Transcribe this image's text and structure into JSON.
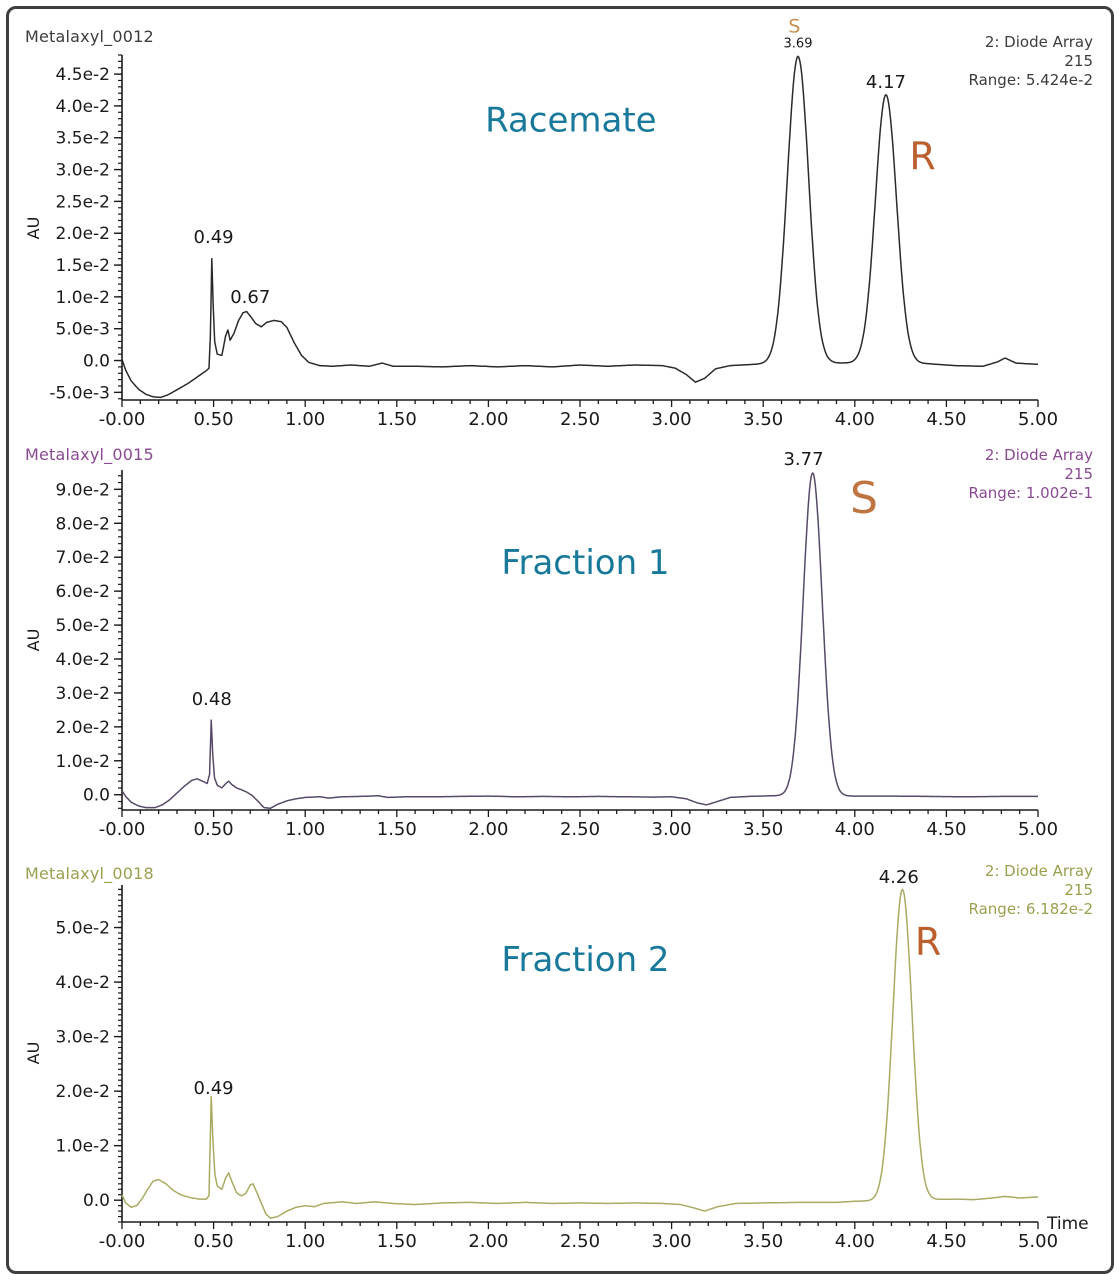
{
  "x_axis": {
    "axis_label": "Time",
    "minor_step": 0.1,
    "labels": [
      [
        0,
        "-0.00"
      ],
      [
        0.5,
        "0.50"
      ],
      [
        1,
        "1.00"
      ],
      [
        1.5,
        "1.50"
      ],
      [
        2,
        "2.00"
      ],
      [
        2.5,
        "2.50"
      ],
      [
        3,
        "3.00"
      ],
      [
        3.5,
        "3.50"
      ],
      [
        4,
        "4.00"
      ],
      [
        4.5,
        "4.50"
      ],
      [
        5,
        "5.00"
      ]
    ]
  },
  "chart_data": [
    {
      "type": "line",
      "title": "Racemate",
      "series_name": "Metalaxyl_0012",
      "name_color": "#3c3c3c",
      "info_lines": [
        "2: Diode Array",
        "215",
        "Range: 5.424e-2"
      ],
      "info_color": "#3c3c3c",
      "trace_color": "#2b2b2b",
      "y_axis_label": "AU",
      "xlim": [
        0,
        5
      ],
      "ylim": [
        -0.0062,
        0.048
      ],
      "y_ticks": {
        "minor_step": 0.001,
        "majors": [
          [
            0.045,
            "4.5e-2"
          ],
          [
            0.04,
            "4.0e-2"
          ],
          [
            0.035,
            "3.5e-2"
          ],
          [
            0.03,
            "3.0e-2"
          ],
          [
            0.025,
            "2.5e-2"
          ],
          [
            0.02,
            "2.0e-2"
          ],
          [
            0.015,
            "1.5e-2"
          ],
          [
            0.01,
            "1.0e-2"
          ],
          [
            0.005,
            "5.0e-3"
          ],
          [
            0,
            "0.0"
          ],
          [
            -0.005,
            "-5.0e-3"
          ]
        ]
      },
      "trace": {
        "baseline_points": [
          [
            0,
            0.0002
          ],
          [
            0.02,
            -0.0015
          ],
          [
            0.05,
            -0.0032
          ],
          [
            0.09,
            -0.0045
          ],
          [
            0.13,
            -0.0053
          ],
          [
            0.17,
            -0.0057
          ],
          [
            0.21,
            -0.0058
          ],
          [
            0.25,
            -0.0054
          ],
          [
            0.3,
            -0.0046
          ],
          [
            0.36,
            -0.0036
          ],
          [
            0.42,
            -0.0024
          ],
          [
            0.46,
            -0.0016
          ],
          [
            0.475,
            -0.0012
          ],
          [
            0.482,
            0.0035
          ],
          [
            0.49,
            0.016
          ],
          [
            0.498,
            0.0085
          ],
          [
            0.506,
            0.003
          ],
          [
            0.52,
            0.001
          ],
          [
            0.545,
            0.0008
          ],
          [
            0.565,
            0.0038
          ],
          [
            0.578,
            0.0048
          ],
          [
            0.59,
            0.0032
          ],
          [
            0.61,
            0.0042
          ],
          [
            0.635,
            0.0062
          ],
          [
            0.66,
            0.0075
          ],
          [
            0.68,
            0.0077
          ],
          [
            0.7,
            0.007
          ],
          [
            0.73,
            0.0058
          ],
          [
            0.76,
            0.0053
          ],
          [
            0.79,
            0.006
          ],
          [
            0.83,
            0.0063
          ],
          [
            0.87,
            0.0061
          ],
          [
            0.9,
            0.0052
          ],
          [
            0.94,
            0.0028
          ],
          [
            0.98,
            0.0008
          ],
          [
            1.02,
            -0.0003
          ],
          [
            1.08,
            -0.0008
          ],
          [
            1.15,
            -0.0009
          ],
          [
            1.25,
            -0.0007
          ],
          [
            1.35,
            -0.0009
          ],
          [
            1.42,
            -0.0004
          ],
          [
            1.48,
            -0.0009
          ],
          [
            1.6,
            -0.0009
          ],
          [
            1.75,
            -0.001
          ],
          [
            1.9,
            -0.0008
          ],
          [
            2.05,
            -0.001
          ],
          [
            2.2,
            -0.0008
          ],
          [
            2.35,
            -0.001
          ],
          [
            2.5,
            -0.0007
          ],
          [
            2.65,
            -0.0009
          ],
          [
            2.8,
            -0.0007
          ],
          [
            2.95,
            -0.0008
          ],
          [
            3.02,
            -0.0012
          ],
          [
            3.08,
            -0.0022
          ],
          [
            3.13,
            -0.0034
          ],
          [
            3.18,
            -0.0028
          ],
          [
            3.24,
            -0.0013
          ],
          [
            3.32,
            -0.0008
          ],
          [
            3.45,
            -0.0006
          ],
          [
            3.6,
            -0.0004
          ],
          [
            3.95,
            -0.0004
          ],
          [
            4.4,
            -0.0005
          ],
          [
            4.55,
            -0.0008
          ],
          [
            4.7,
            -0.0009
          ],
          [
            4.78,
            -0.0002
          ],
          [
            4.82,
            0.0004
          ],
          [
            4.88,
            -0.0004
          ],
          [
            5,
            -0.0006
          ]
        ],
        "gaussian_peaks": [
          {
            "center": 3.69,
            "height": 0.0482,
            "sigma": 0.058
          },
          {
            "center": 4.17,
            "height": 0.0422,
            "sigma": 0.058
          }
        ]
      },
      "annotations": [
        {
          "text": "Racemate",
          "x": 2.45,
          "y": 0.036,
          "size": 34,
          "color": "#19799b"
        },
        {
          "text": "0.49",
          "x": 0.5,
          "y": 0.0185,
          "size": 18,
          "color": "#1a1a1a"
        },
        {
          "text": "0.67",
          "x": 0.7,
          "y": 0.009,
          "size": 18,
          "color": "#1a1a1a"
        },
        {
          "text": "S",
          "x": 3.67,
          "y": 0.0515,
          "size": 19,
          "color": "#c9914f"
        },
        {
          "text": "3.69",
          "x": 3.69,
          "y": 0.0492,
          "size": 13,
          "color": "#1a1a1a"
        },
        {
          "text": "4.17",
          "x": 4.17,
          "y": 0.0428,
          "size": 18,
          "color": "#1a1a1a"
        },
        {
          "text": "R",
          "x": 4.37,
          "y": 0.03,
          "size": 38,
          "color": "#bc5f2f"
        }
      ]
    },
    {
      "type": "line",
      "title": "Fraction 1",
      "series_name": "Metalaxyl_0015",
      "name_color": "#8a4a93",
      "info_lines": [
        "2: Diode Array",
        "215",
        "Range: 1.002e-1"
      ],
      "info_color": "#8a4a93",
      "trace_color": "#564a68",
      "y_axis_label": "AU",
      "xlim": [
        0,
        5
      ],
      "ylim": [
        -0.0045,
        0.0957
      ],
      "y_ticks": {
        "minor_step": 0.002,
        "majors": [
          [
            0.09,
            "9.0e-2"
          ],
          [
            0.08,
            "8.0e-2"
          ],
          [
            0.07,
            "7.0e-2"
          ],
          [
            0.06,
            "6.0e-2"
          ],
          [
            0.05,
            "5.0e-2"
          ],
          [
            0.04,
            "4.0e-2"
          ],
          [
            0.03,
            "3.0e-2"
          ],
          [
            0.02,
            "2.0e-2"
          ],
          [
            0.01,
            "1.0e-2"
          ],
          [
            0,
            "0.0"
          ]
        ]
      },
      "trace": {
        "baseline_points": [
          [
            0,
            0.0012
          ],
          [
            0.02,
            -0.0005
          ],
          [
            0.05,
            -0.0022
          ],
          [
            0.09,
            -0.0033
          ],
          [
            0.13,
            -0.0038
          ],
          [
            0.18,
            -0.0038
          ],
          [
            0.22,
            -0.003
          ],
          [
            0.26,
            -0.0015
          ],
          [
            0.3,
            0.0005
          ],
          [
            0.34,
            0.0025
          ],
          [
            0.38,
            0.0042
          ],
          [
            0.41,
            0.0047
          ],
          [
            0.44,
            0.004
          ],
          [
            0.465,
            0.0033
          ],
          [
            0.478,
            0.006
          ],
          [
            0.487,
            0.022
          ],
          [
            0.495,
            0.012
          ],
          [
            0.505,
            0.005
          ],
          [
            0.52,
            0.0028
          ],
          [
            0.545,
            0.002
          ],
          [
            0.565,
            0.0032
          ],
          [
            0.582,
            0.004
          ],
          [
            0.6,
            0.003
          ],
          [
            0.625,
            0.002
          ],
          [
            0.65,
            0.0015
          ],
          [
            0.68,
            0.0008
          ],
          [
            0.71,
            -0.0002
          ],
          [
            0.74,
            -0.0018
          ],
          [
            0.775,
            -0.0038
          ],
          [
            0.81,
            -0.004
          ],
          [
            0.85,
            -0.0028
          ],
          [
            0.9,
            -0.0018
          ],
          [
            0.95,
            -0.0012
          ],
          [
            1,
            -0.0008
          ],
          [
            1.08,
            -0.0006
          ],
          [
            1.13,
            -0.001
          ],
          [
            1.2,
            -0.0006
          ],
          [
            1.3,
            -0.0005
          ],
          [
            1.4,
            -0.0003
          ],
          [
            1.45,
            -0.0008
          ],
          [
            1.55,
            -0.0006
          ],
          [
            1.7,
            -0.0006
          ],
          [
            1.85,
            -0.0005
          ],
          [
            2,
            -0.0004
          ],
          [
            2.15,
            -0.0006
          ],
          [
            2.3,
            -0.0005
          ],
          [
            2.45,
            -0.0006
          ],
          [
            2.6,
            -0.0005
          ],
          [
            2.75,
            -0.0006
          ],
          [
            2.9,
            -0.0007
          ],
          [
            3,
            -0.0006
          ],
          [
            3.08,
            -0.0012
          ],
          [
            3.14,
            -0.0024
          ],
          [
            3.19,
            -0.003
          ],
          [
            3.25,
            -0.002
          ],
          [
            3.32,
            -0.0008
          ],
          [
            3.42,
            -0.0005
          ],
          [
            3.55,
            -0.0003
          ],
          [
            4,
            -0.0004
          ],
          [
            4.2,
            -0.0004
          ],
          [
            4.4,
            -0.0005
          ],
          [
            4.6,
            -0.0006
          ],
          [
            4.8,
            -0.0005
          ],
          [
            5,
            -0.0005
          ]
        ],
        "gaussian_peaks": [
          {
            "center": 3.77,
            "height": 0.0952,
            "sigma": 0.052
          }
        ]
      },
      "annotations": [
        {
          "text": "Fraction 1",
          "x": 2.53,
          "y": 0.065,
          "size": 34,
          "color": "#19799b"
        },
        {
          "text": "0.48",
          "x": 0.49,
          "y": 0.0265,
          "size": 18,
          "color": "#1a1a1a"
        },
        {
          "text": "3.77",
          "x": 3.72,
          "y": 0.0972,
          "size": 18,
          "color": "#1a1a1a"
        },
        {
          "text": "S",
          "x": 4.05,
          "y": 0.083,
          "size": 44,
          "color": "#bf7540"
        }
      ]
    },
    {
      "type": "line",
      "title": "Fraction 2",
      "series_name": "Metalaxyl_0018",
      "name_color": "#9aa04e",
      "info_lines": [
        "2: Diode Array",
        "215",
        "Range: 6.182e-2"
      ],
      "info_color": "#9aa04e",
      "trace_color": "#a9ab63",
      "y_axis_label": "AU",
      "x_axis_label": "Time",
      "xlim": [
        0,
        5
      ],
      "ylim": [
        -0.004,
        0.0578
      ],
      "y_ticks": {
        "minor_step": 0.001,
        "majors": [
          [
            0.05,
            "5.0e-2"
          ],
          [
            0.04,
            "4.0e-2"
          ],
          [
            0.03,
            "3.0e-2"
          ],
          [
            0.02,
            "2.0e-2"
          ],
          [
            0.01,
            "1.0e-2"
          ],
          [
            0,
            "0.0"
          ]
        ]
      },
      "trace": {
        "baseline_points": [
          [
            0,
            0.001
          ],
          [
            0.02,
            -0.0005
          ],
          [
            0.05,
            -0.0013
          ],
          [
            0.08,
            -0.001
          ],
          [
            0.11,
            0.0003
          ],
          [
            0.14,
            0.002
          ],
          [
            0.17,
            0.0035
          ],
          [
            0.2,
            0.0038
          ],
          [
            0.24,
            0.003
          ],
          [
            0.28,
            0.0018
          ],
          [
            0.32,
            0.001
          ],
          [
            0.37,
            0.0005
          ],
          [
            0.42,
            0.0002
          ],
          [
            0.46,
            0.0002
          ],
          [
            0.475,
            0.0008
          ],
          [
            0.487,
            0.019
          ],
          [
            0.496,
            0.011
          ],
          [
            0.507,
            0.0048
          ],
          [
            0.52,
            0.0026
          ],
          [
            0.545,
            0.002
          ],
          [
            0.565,
            0.004
          ],
          [
            0.582,
            0.005
          ],
          [
            0.6,
            0.0034
          ],
          [
            0.625,
            0.0014
          ],
          [
            0.65,
            0.0008
          ],
          [
            0.675,
            0.0012
          ],
          [
            0.7,
            0.0028
          ],
          [
            0.715,
            0.003
          ],
          [
            0.735,
            0.0015
          ],
          [
            0.76,
            -0.0005
          ],
          [
            0.785,
            -0.0025
          ],
          [
            0.81,
            -0.0033
          ],
          [
            0.85,
            -0.003
          ],
          [
            0.9,
            -0.002
          ],
          [
            0.95,
            -0.0013
          ],
          [
            1,
            -0.001
          ],
          [
            1.05,
            -0.0012
          ],
          [
            1.1,
            -0.0006
          ],
          [
            1.2,
            -0.0003
          ],
          [
            1.28,
            -0.0006
          ],
          [
            1.38,
            -0.0003
          ],
          [
            1.48,
            -0.0006
          ],
          [
            1.6,
            -0.0008
          ],
          [
            1.75,
            -0.0005
          ],
          [
            1.9,
            -0.0004
          ],
          [
            2.05,
            -0.0006
          ],
          [
            2.2,
            -0.0004
          ],
          [
            2.35,
            -0.0006
          ],
          [
            2.5,
            -0.0005
          ],
          [
            2.65,
            -0.0006
          ],
          [
            2.8,
            -0.0005
          ],
          [
            2.95,
            -0.0006
          ],
          [
            3.05,
            -0.0008
          ],
          [
            3.12,
            -0.0014
          ],
          [
            3.18,
            -0.002
          ],
          [
            3.25,
            -0.0012
          ],
          [
            3.35,
            -0.0006
          ],
          [
            3.5,
            -0.0005
          ],
          [
            3.7,
            -0.0004
          ],
          [
            3.9,
            -0.0004
          ],
          [
            4,
            -0.0002
          ],
          [
            4.55,
            0.0002
          ],
          [
            4.65,
            0.0001
          ],
          [
            4.75,
            0.0004
          ],
          [
            4.82,
            0.0007
          ],
          [
            4.9,
            0.0004
          ],
          [
            5,
            0.0006
          ]
        ],
        "gaussian_peaks": [
          {
            "center": 4.26,
            "height": 0.057,
            "sigma": 0.052
          }
        ]
      },
      "annotations": [
        {
          "text": "Fraction 2",
          "x": 2.53,
          "y": 0.042,
          "size": 34,
          "color": "#19799b"
        },
        {
          "text": "0.49",
          "x": 0.5,
          "y": 0.0195,
          "size": 18,
          "color": "#1a1a1a"
        },
        {
          "text": "4.26",
          "x": 4.24,
          "y": 0.0582,
          "size": 18,
          "color": "#1a1a1a"
        },
        {
          "text": "R",
          "x": 4.4,
          "y": 0.045,
          "size": 38,
          "color": "#bc5f2f"
        }
      ]
    }
  ]
}
